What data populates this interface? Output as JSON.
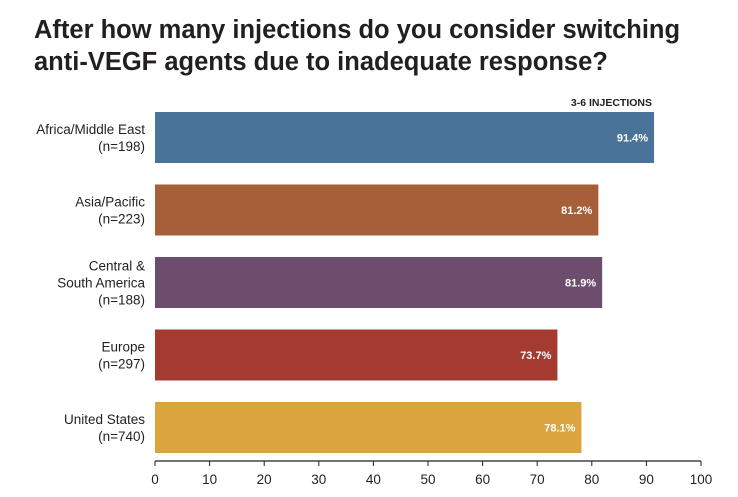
{
  "chart_data": {
    "type": "bar",
    "orientation": "horizontal",
    "title": "After how many injections do you consider switching anti-VEGF agents due to inadequate response?",
    "categories": [
      [
        "Africa/Middle East",
        "(n=198)"
      ],
      [
        "Asia/Pacific",
        "(n=223)"
      ],
      [
        "Central &",
        "South America",
        "(n=188)"
      ],
      [
        "Europe",
        "(n=297)"
      ],
      [
        "United States",
        "(n=740)"
      ]
    ],
    "series": [
      {
        "name": "3-6 INJECTIONS",
        "values": [
          91.4,
          81.2,
          81.9,
          73.7,
          78.1
        ],
        "value_labels": [
          "91.4%",
          "81.2%",
          "81.9%",
          "73.7%",
          "78.1%"
        ]
      }
    ],
    "bar_colors": [
      "#4a7399",
      "#a65f37",
      "#6c4d6d",
      "#a53b30",
      "#dba43e"
    ],
    "xlim": [
      0,
      100
    ],
    "xticks": [
      0,
      10,
      20,
      30,
      40,
      50,
      60,
      70,
      80,
      90,
      100
    ],
    "xlabel": "",
    "ylabel": "",
    "grid": false,
    "legend": "top-right"
  }
}
